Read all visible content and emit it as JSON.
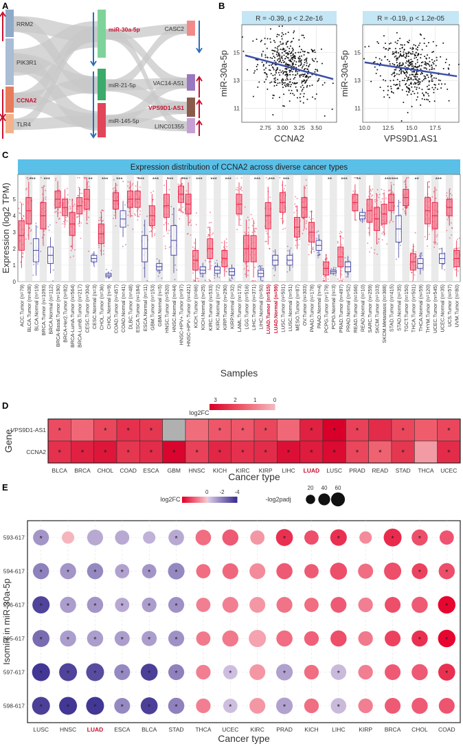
{
  "panels": {
    "a": "A",
    "b": "B",
    "c": "C",
    "d": "D",
    "e": "E"
  },
  "panel_a": {
    "left_nodes": [
      "RRM2",
      "PIK3R1",
      "CCNA2",
      "TLR4"
    ],
    "mid_nodes": [
      "miR-30a-5p",
      "miR-21-5p",
      "miR-145-5p"
    ],
    "right_nodes": [
      "CASC2",
      "VAC14-AS1",
      "VPS9D1-AS1",
      "LINC01355"
    ],
    "highlight": [
      "CCNA2",
      "miR-30a-5p",
      "VPS9D1-AS1"
    ],
    "colors": {
      "up": "#c8102e",
      "down": "#2a6cb8",
      "highlight": "#c8102e"
    }
  },
  "chart_data": [
    {
      "id": "B1",
      "type": "scatter",
      "title": "R = -0.39, p < 2.2e-16",
      "xlabel": "CCNA2",
      "ylabel": "miR-30a-5p",
      "xlim": [
        2.4,
        3.8
      ],
      "ylim": [
        10,
        17
      ],
      "xticks": [
        "2.75",
        "3.00",
        "3.25",
        "3.50"
      ],
      "xtick_values": [
        2.75,
        3.0,
        3.25,
        3.5
      ],
      "yticks": [
        "11",
        "13",
        "15"
      ],
      "ytick_values": [
        11,
        13,
        15
      ],
      "fit": {
        "x": [
          2.45,
          3.75
        ],
        "y": [
          14.8,
          13.1
        ]
      }
    },
    {
      "id": "B2",
      "type": "scatter",
      "title": "R = -0.19, p < 1.2e-05",
      "xlabel": "VPS9D1.AS1",
      "ylabel": "miR-30a-5p",
      "xlim": [
        9.8,
        20
      ],
      "ylim": [
        10,
        17
      ],
      "xticks": [
        "10.0",
        "12.5",
        "15.0",
        "17.5"
      ],
      "xtick_values": [
        10.0,
        12.5,
        15.0,
        17.5
      ],
      "yticks": [
        "11",
        "13",
        "15"
      ],
      "ytick_values": [
        11,
        13,
        15
      ],
      "fit": {
        "x": [
          10.0,
          19.8
        ],
        "y": [
          14.3,
          13.3
        ]
      }
    },
    {
      "id": "C",
      "type": "box",
      "title": "Expression distribution of CCNA2 across diverse cancer types",
      "xlabel": "Samples",
      "ylabel": "Expression (log2 TPM)",
      "ylim": [
        0,
        6.5
      ],
      "yticks": [
        "0",
        "1",
        "2",
        "3",
        "4",
        "5"
      ],
      "ytick_values": [
        0,
        1,
        2,
        3,
        4,
        5
      ],
      "samples": [
        "ACC.Tumor (n=79)",
        "BLCA.Tumor (n=408)",
        "BLCA.Normal (n=19)",
        "BRCA.Tumor (n=1093)",
        "BRCA.Normal (n=112)",
        "BRCA-Basal.Tumor (n=190)",
        "BRCA-Her2.Tumor (n=82)",
        "BRCA-LumA.Tumor (n=564)",
        "BRCA-LumB.Tumor (n=217)",
        "CESC.Tumor (n=304)",
        "CESC.Normal (n=3)",
        "CHOL.Tumor (n=36)",
        "CHOL.Normal (n=9)",
        "COAD.Tumor (n=457)",
        "COAD.Normal (n=41)",
        "DLBC.Tumor (n=48)",
        "ESCA.Tumor (n=184)",
        "ESCA.Normal (n=11)",
        "GBM.Tumor (n=153)",
        "GBM.Normal (n=5)",
        "HNSC.Tumor (n=520)",
        "HNSC.Normal (n=44)",
        "HNSC-HPV+.Tumor (n=97)",
        "HNSC-HPV-.Tumor (n=421)",
        "KICH.Tumor (n=66)",
        "KICH.Normal (n=25)",
        "KIRC.Tumor (n=533)",
        "KIRC.Normal (n=72)",
        "KIRP.Tumor (n=290)",
        "KIRP.Normal (n=32)",
        "LAML.Tumor (n=173)",
        "LGG.Tumor (n=516)",
        "LIHC.Tumor (n=371)",
        "LIHC.Normal (n=50)",
        "LUAD.Tumor (n=515)",
        "LUAD.Normal (n=59)",
        "LUSC.Tumor (n=501)",
        "LUSC.Normal (n=51)",
        "MESO.Tumor (n=87)",
        "OV.Tumor (n=303)",
        "PAAD.Tumor (n=178)",
        "PAAD.Normal (n=4)",
        "PCPG.Tumor (n=179)",
        "PCPG.Normal (n=3)",
        "PRAD.Tumor (n=497)",
        "PRAD.Normal (n=52)",
        "READ.Tumor (n=166)",
        "READ.Normal (n=10)",
        "SARC.Tumor (n=259)",
        "SKCM.Tumor (n=103)",
        "SKCM.Metastasis (n=368)",
        "STAD.Tumor (n=415)",
        "STAD.Normal (n=35)",
        "TGCT.Tumor (n=150)",
        "THCA.Tumor (n=501)",
        "THCA.Normal (n=59)",
        "THYM.Tumor (n=120)",
        "UCEC.Tumor (n=545)",
        "UCEC.Normal (n=35)",
        "UCS.Tumor (n=57)",
        "UVM.Tumor (n=80)"
      ],
      "highlight": [
        "LUAD.Tumor (n=515)",
        "LUAD.Normal (n=59)"
      ],
      "medians": [
        2.8,
        4.3,
        1.9,
        4.0,
        1.6,
        5.0,
        4.5,
        3.5,
        4.6,
        5.0,
        1.4,
        2.9,
        0.4,
        4.9,
        3.8,
        5.0,
        5.0,
        2.0,
        4.0,
        0.9,
        4.6,
        2.5,
        5.3,
        4.7,
        1.3,
        0.7,
        2.0,
        0.7,
        1.4,
        0.6,
        4.7,
        2.0,
        2.0,
        0.5,
        4.0,
        1.3,
        4.8,
        1.3,
        3.3,
        4.5,
        3.0,
        2.2,
        0.8,
        0.6,
        1.5,
        0.9,
        4.8,
        4.0,
        4.3,
        3.8,
        4.1,
        4.8,
        3.2,
        5.1,
        1.2,
        1.1,
        4.3,
        4.0,
        1.4,
        4.5,
        1.4
      ],
      "spreads": [
        0.9,
        0.8,
        0.7,
        0.8,
        0.5,
        0.5,
        0.5,
        0.7,
        0.5,
        0.6,
        0.2,
        0.6,
        0.1,
        0.5,
        0.5,
        0.5,
        0.5,
        0.8,
        0.6,
        0.2,
        0.7,
        0.9,
        0.5,
        0.6,
        0.6,
        0.2,
        0.6,
        0.2,
        0.5,
        0.2,
        0.6,
        0.8,
        0.8,
        0.2,
        0.8,
        0.3,
        0.6,
        0.3,
        0.6,
        0.6,
        0.6,
        0.3,
        0.4,
        0.1,
        0.6,
        0.3,
        0.5,
        0.2,
        0.7,
        0.7,
        0.6,
        0.5,
        0.8,
        0.5,
        0.5,
        0.3,
        0.8,
        0.8,
        0.3,
        0.5,
        0.5
      ],
      "significance": [
        "",
        "***",
        "",
        "***",
        "",
        "",
        "",
        "",
        "",
        "**",
        "",
        "***",
        "",
        "***",
        "",
        "",
        "***",
        "",
        "***",
        "",
        "***",
        "",
        "***",
        "",
        "***",
        "",
        "***",
        "",
        "***",
        "",
        "",
        "",
        "***",
        "",
        "***",
        "",
        "***",
        "",
        "",
        "",
        "",
        "",
        "**",
        "",
        "***",
        "",
        "**",
        "",
        "",
        "",
        "***",
        "***",
        "",
        "",
        "**",
        "",
        "",
        "***",
        "",
        "",
        ""
      ],
      "colors": {
        "tumor": "#e8173e",
        "normal": "#3b3b9e",
        "header": "#5bc0e8",
        "stripe": "#d9d9d9"
      }
    },
    {
      "id": "D",
      "type": "heatmap",
      "xlabel": "Cancer type",
      "ylabel": "Gene",
      "legend_title": "log2FC",
      "legend_ticks": [
        "3",
        "2",
        "1",
        "0"
      ],
      "legend_values": [
        3,
        2,
        1,
        0
      ],
      "columns": [
        "BLCA",
        "BRCA",
        "CHOL",
        "COAD",
        "ESCA",
        "GBM",
        "HNSC",
        "KICH",
        "KIRC",
        "KIRP",
        "LIHC",
        "LUAD",
        "LUSC",
        "PRAD",
        "READ",
        "STAD",
        "THCA",
        "UCEC"
      ],
      "highlight_column": "LUAD",
      "rows": [
        {
          "label": "VPS9D1-AS1",
          "values": [
            1.9,
            1.4,
            2.0,
            2.4,
            2.3,
            0.0,
            1.3,
            1.7,
            1.7,
            2.0,
            1.4,
            2.7,
            3.3,
            2.1,
            2.5,
            2.0,
            1.6,
            2.0
          ],
          "sig": [
            1,
            0,
            1,
            1,
            1,
            0,
            0,
            1,
            1,
            1,
            0,
            1,
            1,
            1,
            0,
            1,
            0,
            1
          ]
        },
        {
          "label": "CCNA2",
          "values": [
            2.4,
            2.7,
            2.9,
            2.3,
            2.5,
            3.2,
            2.1,
            2.6,
            2.4,
            2.5,
            3.0,
            2.8,
            3.1,
            2.0,
            1.5,
            2.3,
            0.5,
            2.5
          ],
          "sig": [
            1,
            1,
            1,
            1,
            1,
            1,
            1,
            1,
            1,
            1,
            1,
            1,
            1,
            1,
            1,
            1,
            0,
            1
          ]
        }
      ]
    },
    {
      "id": "E",
      "type": "bubble",
      "xlabel": "Cancer type",
      "ylabel": "IsomiR in miR-30a-5p",
      "color_legend_title": "log2FC",
      "color_legend_ticks": [
        "0",
        "-2",
        "-4"
      ],
      "color_legend_values": [
        0,
        -2,
        -4
      ],
      "size_legend_title": "-log2padj",
      "size_legend_values": [
        "20",
        "40",
        "60"
      ],
      "columns": [
        "LUSC",
        "HNSC",
        "LUAD",
        "ESCA",
        "BLCA",
        "STAD",
        "THCA",
        "UCEC",
        "KIRC",
        "PRAD",
        "KICH",
        "LIHC",
        "KIRP",
        "BRCA",
        "CHOL",
        "COAD"
      ],
      "highlight_column": "LUAD",
      "rows": [
        {
          "label": "593-617",
          "fc": [
            -1.5,
            0.3,
            -1.0,
            -1.0,
            -0.8,
            -1.0,
            1.5,
            1.8,
            0.8,
            2.5,
            2.0,
            2.5,
            1.0,
            2.6,
            2.0,
            1.9
          ],
          "size": [
            40,
            20,
            40,
            30,
            20,
            38,
            38,
            42,
            30,
            48,
            30,
            45,
            20,
            55,
            42,
            30
          ],
          "sig": [
            1,
            0,
            0,
            0,
            0,
            1,
            0,
            0,
            0,
            1,
            0,
            1,
            0,
            1,
            1,
            0
          ]
        },
        {
          "label": "594-617",
          "fc": [
            -2.0,
            -1.5,
            -1.8,
            -1.2,
            -1.5,
            -1.8,
            1.5,
            1.6,
            1.0,
            1.8,
            1.8,
            2.0,
            1.5,
            2.0,
            2.2,
            2.0
          ],
          "size": [
            42,
            42,
            42,
            30,
            30,
            45,
            30,
            40,
            40,
            42,
            30,
            48,
            35,
            50,
            40,
            42
          ],
          "sig": [
            1,
            1,
            1,
            1,
            1,
            1,
            0,
            0,
            0,
            0,
            0,
            0,
            0,
            0,
            1,
            1
          ]
        },
        {
          "label": "596-617",
          "fc": [
            -3.5,
            -1.3,
            -1.5,
            -1.0,
            -1.3,
            -1.6,
            1.2,
            1.2,
            0.8,
            1.4,
            1.5,
            1.8,
            1.2,
            2.0,
            1.8,
            3.2
          ],
          "size": [
            50,
            42,
            42,
            30,
            32,
            40,
            30,
            40,
            40,
            40,
            30,
            40,
            32,
            40,
            42,
            52
          ],
          "sig": [
            1,
            1,
            1,
            1,
            1,
            1,
            0,
            0,
            0,
            0,
            0,
            0,
            0,
            0,
            0,
            1
          ]
        },
        {
          "label": "595-617",
          "fc": [
            -2.5,
            -1.3,
            -1.3,
            -1.3,
            -1.3,
            -1.6,
            1.3,
            1.3,
            0.6,
            1.5,
            1.7,
            2.0,
            1.3,
            2.2,
            2.5,
            3.2
          ],
          "size": [
            48,
            42,
            42,
            35,
            35,
            40,
            30,
            42,
            50,
            42,
            32,
            42,
            32,
            40,
            42,
            52
          ],
          "sig": [
            1,
            1,
            1,
            1,
            1,
            1,
            0,
            0,
            0,
            0,
            0,
            0,
            0,
            0,
            1,
            1
          ]
        },
        {
          "label": "597-617",
          "fc": [
            -3.8,
            -3.5,
            -3.3,
            -1.8,
            -3.6,
            -2.0,
            1.2,
            -0.5,
            0.8,
            -1.2,
            1.5,
            -0.6,
            1.2,
            1.8,
            1.8,
            2.5
          ],
          "size": [
            55,
            55,
            55,
            40,
            48,
            40,
            32,
            30,
            40,
            45,
            32,
            38,
            32,
            40,
            42,
            48
          ],
          "sig": [
            1,
            1,
            1,
            1,
            1,
            1,
            0,
            1,
            0,
            1,
            0,
            1,
            0,
            0,
            0,
            1
          ]
        },
        {
          "label": "598-617",
          "fc": [
            -3.6,
            -3.8,
            -3.8,
            -1.8,
            -3.6,
            -2.0,
            1.2,
            -0.5,
            0.8,
            -1.2,
            1.5,
            -0.6,
            1.2,
            1.8,
            1.8,
            1.9
          ],
          "size": [
            55,
            55,
            55,
            40,
            48,
            42,
            32,
            30,
            40,
            45,
            32,
            38,
            32,
            40,
            42,
            40
          ],
          "sig": [
            1,
            1,
            1,
            1,
            1,
            1,
            0,
            1,
            0,
            1,
            0,
            1,
            0,
            0,
            0,
            0
          ]
        }
      ]
    }
  ]
}
